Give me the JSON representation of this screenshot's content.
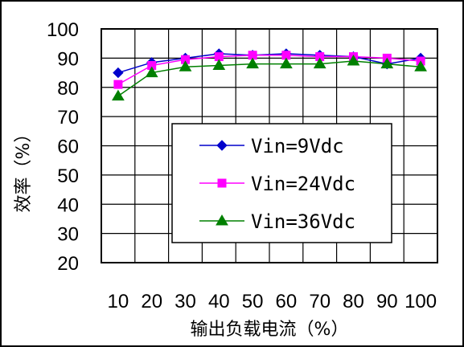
{
  "chart_data": {
    "type": "line",
    "title": "",
    "xlabel": "输出负载电流（%）",
    "ylabel": "效率（%）",
    "x": [
      10,
      20,
      30,
      40,
      50,
      60,
      70,
      80,
      90,
      100
    ],
    "x_tick_labels": [
      "10",
      "20",
      "30",
      "40",
      "50",
      "60",
      "70",
      "80",
      "90",
      "100"
    ],
    "y_tick_labels": [
      "20",
      "30",
      "40",
      "50",
      "60",
      "70",
      "80",
      "90",
      "100"
    ],
    "ylim": [
      20,
      100
    ],
    "grid": true,
    "legend_position": "center-right",
    "series": [
      {
        "name": "Vin=9Vdc",
        "color": "#0000CC",
        "marker": "diamond",
        "values": [
          85.0,
          88.5,
          90.0,
          91.5,
          91.0,
          91.5,
          91.0,
          90.5,
          88.0,
          90.0
        ]
      },
      {
        "name": "Vin=24Vdc",
        "color": "#FF00FF",
        "marker": "square",
        "values": [
          81.0,
          87.5,
          89.5,
          90.5,
          91.0,
          91.0,
          90.5,
          90.5,
          90.0,
          89.0
        ]
      },
      {
        "name": "Vin=36Vdc",
        "color": "#008000",
        "marker": "triangle",
        "values": [
          77.0,
          85.0,
          87.0,
          87.5,
          88.0,
          88.0,
          88.0,
          89.0,
          88.0,
          87.0
        ]
      }
    ]
  }
}
